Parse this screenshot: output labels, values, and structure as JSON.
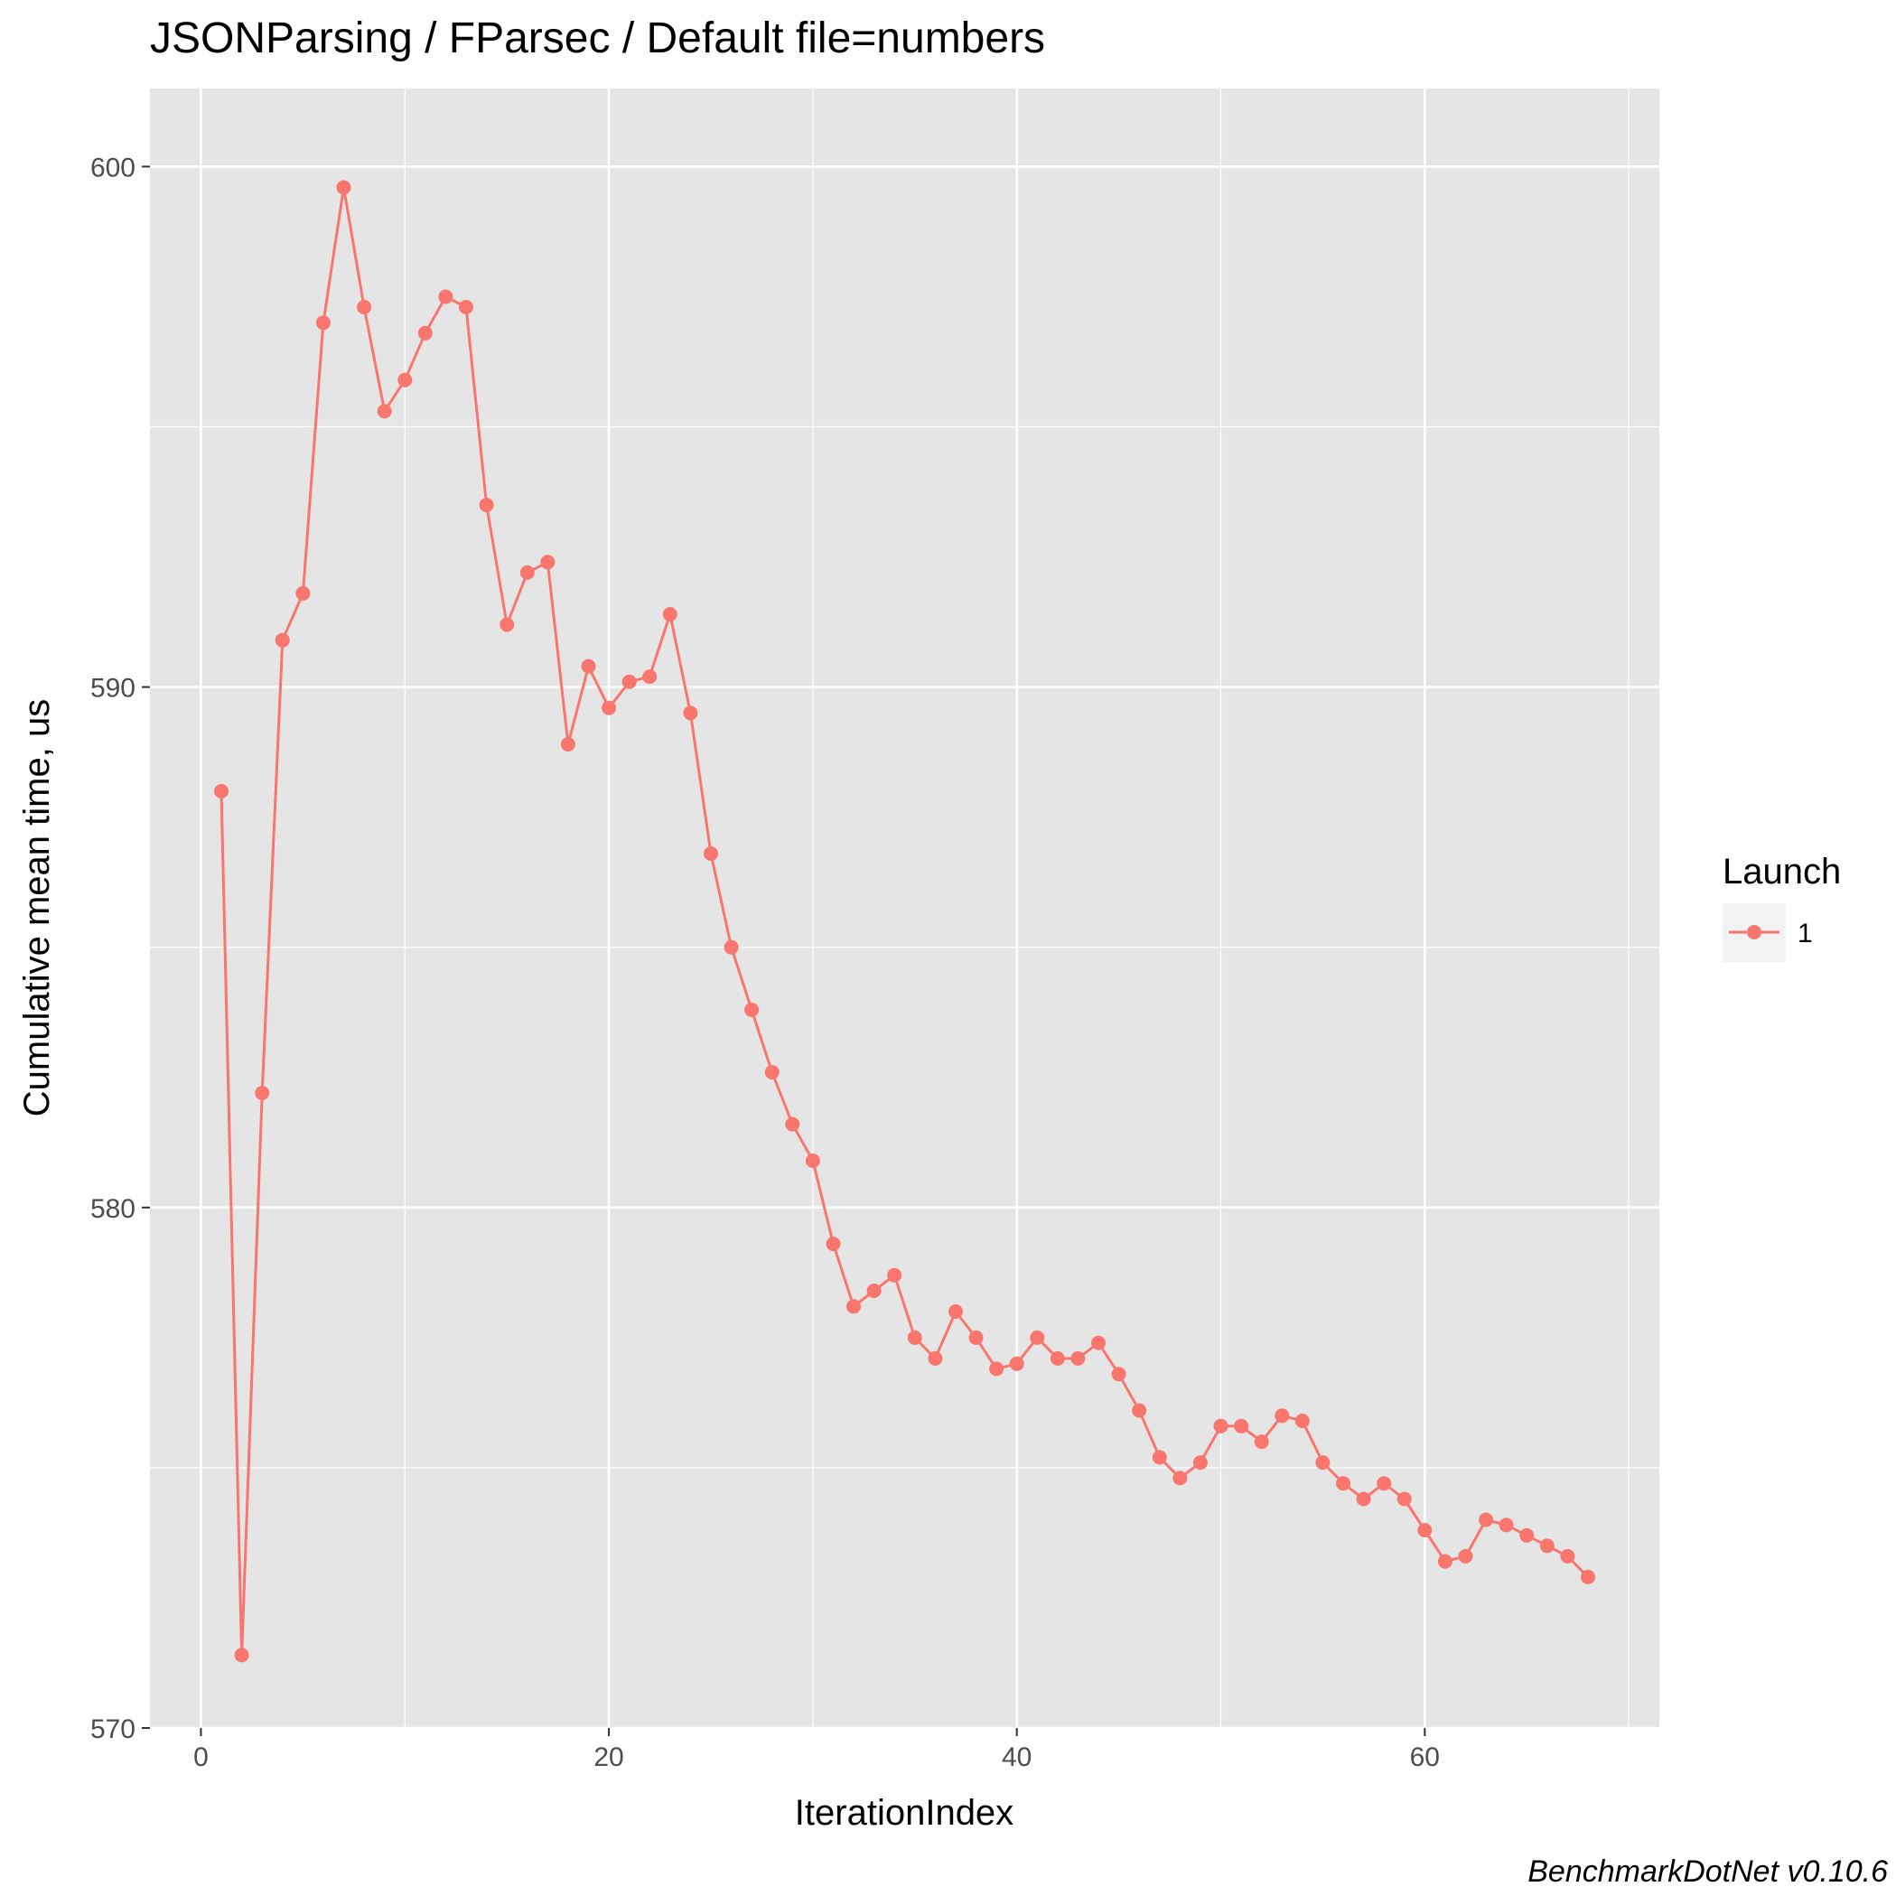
{
  "chart_data": {
    "type": "line",
    "title": "JSONParsing / FParsec / Default file=numbers",
    "xlabel": "IterationIndex",
    "ylabel": "Cumulative mean time, us",
    "caption": "BenchmarkDotNet v0.10.6",
    "xlim": [
      -2.5,
      71.5
    ],
    "ylim": [
      570,
      601.5
    ],
    "x_ticks": [
      0,
      20,
      40,
      60
    ],
    "x_tick_labels": [
      "0",
      "20",
      "40",
      "60"
    ],
    "x_minor_ticks": [
      10,
      30,
      50,
      70
    ],
    "y_ticks": [
      570,
      580,
      590,
      600
    ],
    "y_tick_labels": [
      "570",
      "580",
      "590",
      "600"
    ],
    "y_minor_ticks": [
      575,
      585,
      595
    ],
    "grid": true,
    "legend": {
      "title": "Launch",
      "placement": "right"
    },
    "colors": {
      "series": "#f8766d",
      "panel": "#e5e5e5",
      "grid": "#ffffff"
    },
    "series": [
      {
        "name": "1",
        "x": [
          1,
          2,
          3,
          4,
          5,
          6,
          7,
          8,
          9,
          10,
          11,
          12,
          13,
          14,
          15,
          16,
          17,
          18,
          19,
          20,
          21,
          22,
          23,
          24,
          25,
          26,
          27,
          28,
          29,
          30,
          31,
          32,
          33,
          34,
          35,
          36,
          37,
          38,
          39,
          40,
          41,
          42,
          43,
          44,
          45,
          46,
          47,
          48,
          49,
          50,
          51,
          52,
          53,
          54,
          55,
          56,
          57,
          58,
          59,
          60,
          61,
          62,
          63,
          64,
          65,
          66,
          67,
          68
        ],
        "values": [
          588.0,
          571.4,
          582.2,
          590.9,
          591.8,
          597.0,
          599.6,
          597.3,
          595.3,
          595.9,
          596.8,
          597.5,
          597.3,
          593.5,
          591.2,
          592.2,
          592.4,
          588.9,
          590.4,
          589.6,
          590.1,
          590.2,
          591.4,
          589.5,
          586.8,
          585.0,
          583.8,
          582.6,
          581.6,
          580.9,
          579.3,
          578.1,
          578.4,
          578.7,
          577.5,
          577.1,
          578.0,
          577.5,
          576.9,
          577.0,
          577.5,
          577.1,
          577.1,
          577.4,
          576.8,
          576.1,
          575.2,
          574.8,
          575.1,
          575.8,
          575.8,
          575.5,
          576.0,
          575.9,
          575.1,
          574.7,
          574.4,
          574.7,
          574.4,
          573.8,
          573.2,
          573.3,
          574.0,
          573.9,
          573.7,
          573.5,
          573.3,
          572.9
        ]
      }
    ]
  }
}
